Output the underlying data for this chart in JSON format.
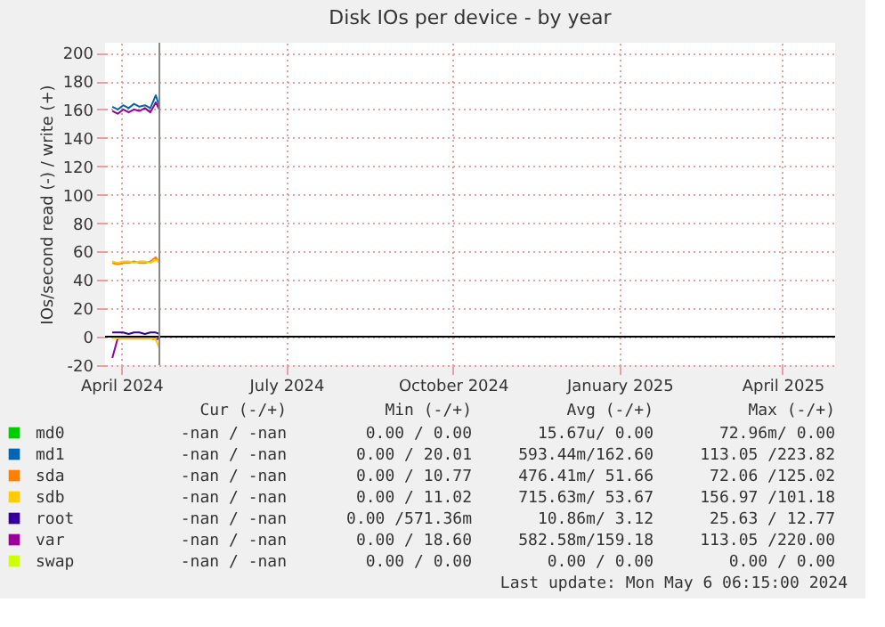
{
  "chart_data": {
    "type": "line",
    "title": "Disk IOs per device - by year",
    "ylabel": "IOs/second read (-) / write (+)",
    "x": [
      "2024-03-27",
      "2024-03-30",
      "2024-04-02",
      "2024-04-05",
      "2024-04-08",
      "2024-04-11",
      "2024-04-14",
      "2024-04-17",
      "2024-04-20",
      "2024-04-22"
    ],
    "xlim": [
      "2024-03-23",
      "2025-04-30"
    ],
    "xticks": [
      {
        "value": "2024-04-01",
        "label": "April 2024"
      },
      {
        "value": "2024-07-01",
        "label": "July 2024"
      },
      {
        "value": "2024-10-01",
        "label": "October 2024"
      },
      {
        "value": "2025-01-01",
        "label": "January 2025"
      },
      {
        "value": "2025-04-01",
        "label": "April 2025"
      }
    ],
    "ylim": [
      -20,
      207
    ],
    "yticks": [
      -20,
      0,
      20,
      40,
      60,
      80,
      100,
      120,
      140,
      160,
      180,
      200
    ],
    "grid": true,
    "legend": "bottom",
    "series": [
      {
        "name": "md0",
        "color": "#00cc00",
        "values": [
          null,
          null,
          null,
          null,
          null,
          null,
          null,
          null,
          null,
          null
        ]
      },
      {
        "name": "md1",
        "color": "#0066b3",
        "values": [
          162,
          160,
          163,
          161,
          164,
          162,
          163,
          161,
          170,
          162
        ]
      },
      {
        "name": "sda",
        "color": "#ff8000",
        "values": [
          52,
          51,
          52,
          52,
          53,
          52,
          52,
          53,
          56,
          52
        ]
      },
      {
        "name": "sdb",
        "color": "#ffcc00",
        "values": [
          53,
          52,
          53,
          53,
          52,
          53,
          53,
          52,
          54,
          53
        ]
      },
      {
        "name": "root",
        "color": "#330099",
        "values": [
          3,
          3,
          3,
          2,
          3,
          3,
          2,
          3,
          3,
          2
        ]
      },
      {
        "name": "var",
        "color": "#990099",
        "values": [
          159,
          157,
          160,
          158,
          160,
          159,
          161,
          158,
          165,
          160
        ]
      },
      {
        "name": "swap",
        "color": "#ccff00",
        "values": [
          null,
          null,
          null,
          null,
          null,
          null,
          null,
          null,
          null,
          null
        ]
      },
      {
        "color": "#990099",
        "values": [
          -15,
          -1,
          -1,
          -1,
          -1,
          -1,
          -1,
          -1,
          -2,
          -1
        ]
      },
      {
        "color": "#ffcc00",
        "values": [
          -1,
          -1,
          -1,
          -1,
          -1,
          -1,
          -1,
          -1,
          -2,
          -8
        ]
      }
    ],
    "ref_lines": [
      {
        "axis": "y",
        "value": 0,
        "color": "#000000"
      },
      {
        "axis": "x",
        "value": "2024-04-22",
        "color": "#888888"
      }
    ],
    "annotations": [
      "Cur (-/+)",
      "Min (-/+)",
      "Avg (-/+)",
      "Max (-/+)",
      "-nan / -nan",
      "0.00 / 0.00",
      "15.67u/ 0.00",
      "72.96m/ 0.00",
      "-nan / -nan",
      "0.00 / 20.01",
      "593.44m/162.60",
      "113.05 /223.82",
      "-nan / -nan",
      "0.00 / 10.77",
      "476.41m/ 51.66",
      "72.06 /125.02",
      "-nan / -nan",
      "0.00 / 11.02",
      "715.63m/ 53.67",
      "156.97 /101.18",
      "-nan / -nan",
      "0.00 /571.36m",
      "10.86m/ 3.12",
      "25.63 / 12.77",
      "-nan / -nan",
      "0.00 / 18.60",
      "582.58m/159.18",
      "113.05 /220.00",
      "-nan / -nan",
      "0.00 / 0.00",
      "0.00 / 0.00",
      "0.00 / 0.00",
      "Last update: Mon May 6 06:15:00 2024"
    ]
  }
}
